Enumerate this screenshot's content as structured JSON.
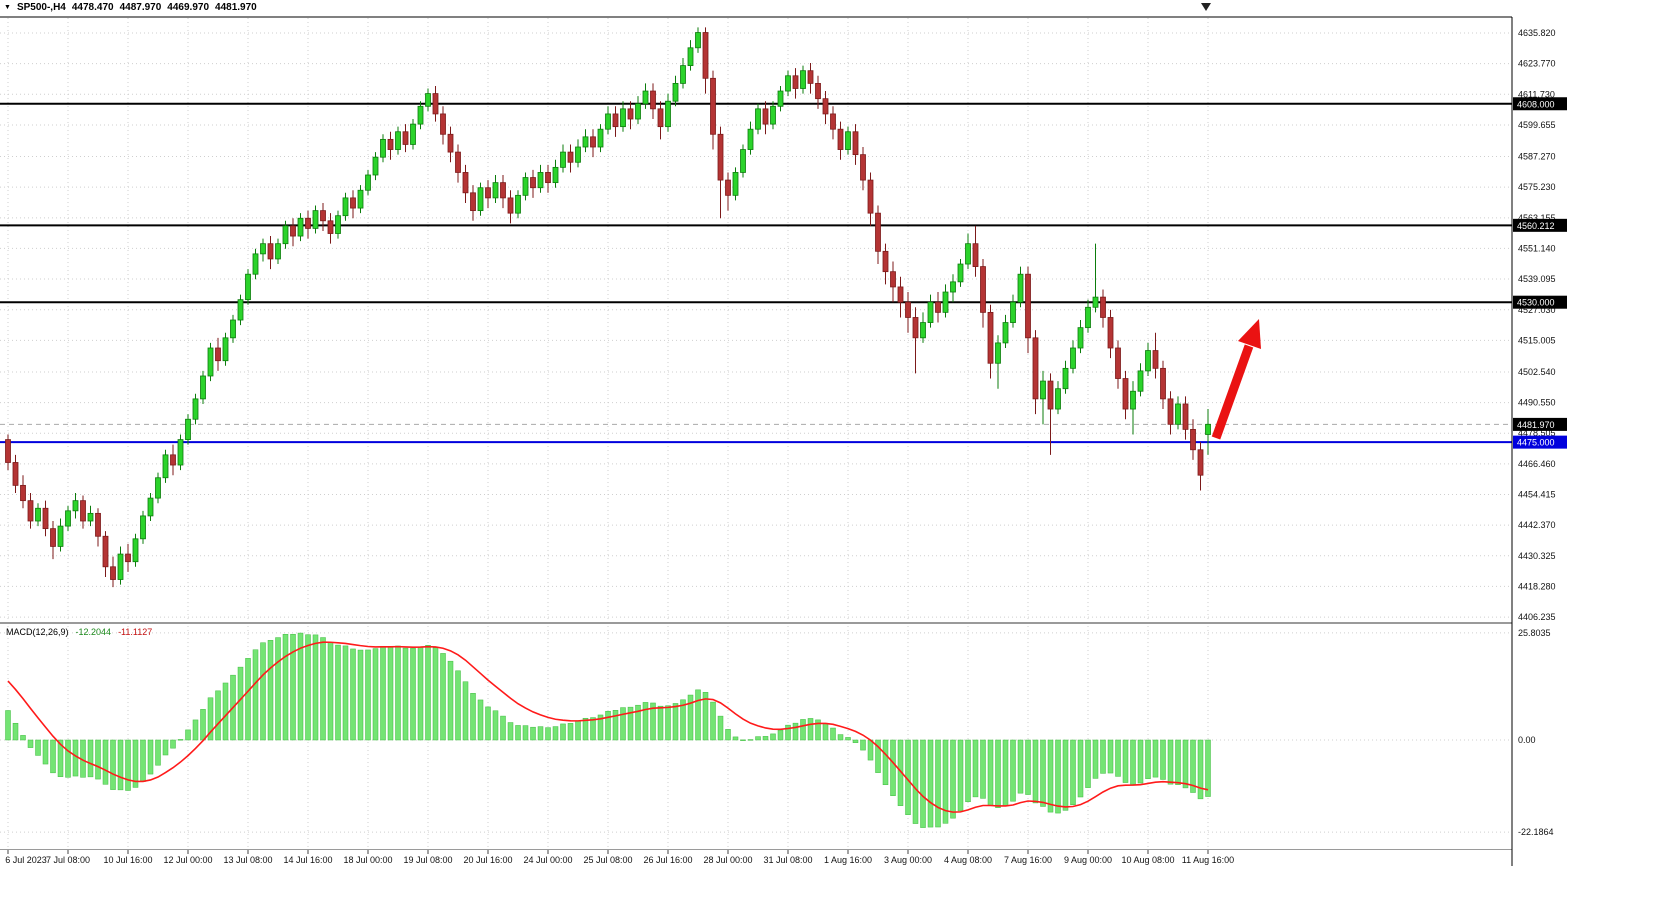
{
  "header": {
    "dropdown_icon": "▼",
    "symbol_timeframe": "SP500-,H4",
    "open": "4478.470",
    "high": "4487.970",
    "low": "4469.970",
    "close": "4481.970"
  },
  "colors": {
    "bull": "#2bd32b",
    "bull_stroke": "#0c7c0c",
    "bear": "#b43434",
    "bear_stroke": "#7c1a1a",
    "histogram": "#74e474",
    "histogram_stroke": "#3fbc3f",
    "signal": "#ff1a1a",
    "grid": "#cfcfcf",
    "level_black": "#000000",
    "level_blue": "#0000dd",
    "arrow": "#ea1212"
  },
  "price_scale": {
    "ticks": [
      "4635.820",
      "4623.770",
      "4611.730",
      "4599.655",
      "4587.270",
      "4575.230",
      "4563.155",
      "4551.140",
      "4539.095",
      "4527.030",
      "4515.005",
      "4502.540",
      "4490.550",
      "4478.505",
      "4466.460",
      "4454.415",
      "4442.370",
      "4430.325",
      "4418.280",
      "4406.235"
    ]
  },
  "levels": [
    {
      "price": 4608.0,
      "label": "4608.000",
      "color": "#000000",
      "style": "solid",
      "width": 2,
      "tag_color": "#000000"
    },
    {
      "price": 4560.212,
      "label": "4560.212",
      "color": "#000000",
      "style": "solid",
      "width": 2,
      "tag_color": "#000000"
    },
    {
      "price": 4530.0,
      "label": "4530.000",
      "color": "#000000",
      "style": "solid",
      "width": 2,
      "tag_color": "#000000"
    },
    {
      "price": 4481.97,
      "label": "4481.970",
      "color": "#aaaaaa",
      "style": "dashed",
      "width": 1,
      "tag_color": "#000000"
    },
    {
      "price": 4475.0,
      "label": "4475.000",
      "color": "#0000dd",
      "style": "solid",
      "width": 2,
      "tag_color": "#0000dd"
    }
  ],
  "time_axis": {
    "labels": [
      {
        "text": "6 Jul 2023",
        "bar": 0
      },
      {
        "text": "7 Jul 08:00",
        "bar": 8
      },
      {
        "text": "10 Jul 16:00",
        "bar": 16
      },
      {
        "text": "12 Jul 00:00",
        "bar": 24
      },
      {
        "text": "13 Jul 08:00",
        "bar": 32
      },
      {
        "text": "14 Jul 16:00",
        "bar": 40
      },
      {
        "text": "18 Jul 00:00",
        "bar": 48
      },
      {
        "text": "19 Jul 08:00",
        "bar": 56
      },
      {
        "text": "20 Jul 16:00",
        "bar": 64
      },
      {
        "text": "24 Jul 00:00",
        "bar": 72
      },
      {
        "text": "25 Jul 08:00",
        "bar": 80
      },
      {
        "text": "26 Jul 16:00",
        "bar": 88
      },
      {
        "text": "28 Jul 00:00",
        "bar": 96
      },
      {
        "text": "31 Jul 08:00",
        "bar": 104
      },
      {
        "text": "1 Aug 16:00",
        "bar": 112
      },
      {
        "text": "3 Aug 00:00",
        "bar": 120
      },
      {
        "text": "4 Aug 08:00",
        "bar": 128
      },
      {
        "text": "7 Aug 16:00",
        "bar": 136
      },
      {
        "text": "9 Aug 00:00",
        "bar": 144
      },
      {
        "text": "10 Aug 08:00",
        "bar": 152
      },
      {
        "text": "11 Aug 16:00",
        "bar": 160
      }
    ]
  },
  "chart_data": {
    "type": "candlestick",
    "symbol": "SP500-",
    "timeframe": "H4",
    "current_bar": {
      "open": "4478.470",
      "high": "4487.970",
      "low": "4469.970",
      "close": "4481.970"
    },
    "y_range": [
      4406.235,
      4635.82
    ],
    "ohlc": [
      [
        4476,
        4478,
        4464,
        4467
      ],
      [
        4467,
        4470,
        4455,
        4458
      ],
      [
        4458,
        4462,
        4449,
        4452
      ],
      [
        4452,
        4455,
        4441,
        4444
      ],
      [
        4444,
        4451,
        4442,
        4449
      ],
      [
        4449,
        4452,
        4438,
        4441
      ],
      [
        4441,
        4444,
        4429,
        4434
      ],
      [
        4434,
        4445,
        4432,
        4442
      ],
      [
        4442,
        4450,
        4440,
        4448
      ],
      [
        4448,
        4455,
        4445,
        4452
      ],
      [
        4452,
        4454,
        4441,
        4444
      ],
      [
        4444,
        4450,
        4442,
        4447
      ],
      [
        4447,
        4449,
        4434,
        4438
      ],
      [
        4438,
        4440,
        4422,
        4426
      ],
      [
        4426,
        4430,
        4418,
        4421
      ],
      [
        4421,
        4434,
        4419,
        4431
      ],
      [
        4431,
        4435,
        4424,
        4428
      ],
      [
        4428,
        4439,
        4426,
        4437
      ],
      [
        4437,
        4448,
        4435,
        4446
      ],
      [
        4446,
        4455,
        4444,
        4453
      ],
      [
        4453,
        4463,
        4451,
        4461
      ],
      [
        4461,
        4472,
        4459,
        4470
      ],
      [
        4470,
        4474,
        4462,
        4466
      ],
      [
        4466,
        4478,
        4464,
        4476
      ],
      [
        4476,
        4486,
        4474,
        4484
      ],
      [
        4484,
        4494,
        4482,
        4492
      ],
      [
        4492,
        4503,
        4490,
        4501
      ],
      [
        4501,
        4514,
        4499,
        4512
      ],
      [
        4512,
        4516,
        4503,
        4507
      ],
      [
        4507,
        4518,
        4505,
        4516
      ],
      [
        4516,
        4525,
        4514,
        4523
      ],
      [
        4523,
        4533,
        4521,
        4531
      ],
      [
        4531,
        4543,
        4529,
        4541
      ],
      [
        4541,
        4551,
        4539,
        4549
      ],
      [
        4549,
        4555,
        4546,
        4553
      ],
      [
        4553,
        4556,
        4543,
        4547
      ],
      [
        4547,
        4555,
        4545,
        4553
      ],
      [
        4553,
        4562,
        4551,
        4560
      ],
      [
        4560,
        4563,
        4552,
        4556
      ],
      [
        4556,
        4565,
        4554,
        4563
      ],
      [
        4563,
        4566,
        4555,
        4559
      ],
      [
        4559,
        4568,
        4557,
        4566
      ],
      [
        4566,
        4569,
        4558,
        4562
      ],
      [
        4562,
        4565,
        4553,
        4557
      ],
      [
        4557,
        4566,
        4555,
        4564
      ],
      [
        4564,
        4573,
        4562,
        4571
      ],
      [
        4571,
        4574,
        4563,
        4567
      ],
      [
        4567,
        4576,
        4565,
        4574
      ],
      [
        4574,
        4582,
        4572,
        4580
      ],
      [
        4580,
        4589,
        4578,
        4587
      ],
      [
        4587,
        4596,
        4585,
        4594
      ],
      [
        4594,
        4597,
        4586,
        4590
      ],
      [
        4590,
        4599,
        4588,
        4597
      ],
      [
        4597,
        4600,
        4589,
        4592
      ],
      [
        4592,
        4602,
        4590,
        4600
      ],
      [
        4600,
        4609,
        4598,
        4607
      ],
      [
        4607,
        4614,
        4605,
        4612
      ],
      [
        4612,
        4615,
        4601,
        4604
      ],
      [
        4604,
        4607,
        4592,
        4596
      ],
      [
        4596,
        4599,
        4585,
        4589
      ],
      [
        4589,
        4592,
        4577,
        4581
      ],
      [
        4581,
        4584,
        4569,
        4573
      ],
      [
        4573,
        4576,
        4562,
        4566
      ],
      [
        4566,
        4577,
        4564,
        4575
      ],
      [
        4575,
        4578,
        4567,
        4571
      ],
      [
        4571,
        4580,
        4569,
        4577
      ],
      [
        4577,
        4580,
        4567,
        4571
      ],
      [
        4571,
        4574,
        4561,
        4565
      ],
      [
        4565,
        4574,
        4563,
        4572
      ],
      [
        4572,
        4581,
        4570,
        4579
      ],
      [
        4579,
        4582,
        4571,
        4575
      ],
      [
        4575,
        4584,
        4573,
        4581
      ],
      [
        4581,
        4584,
        4573,
        4577
      ],
      [
        4577,
        4586,
        4575,
        4583
      ],
      [
        4583,
        4592,
        4581,
        4589
      ],
      [
        4589,
        4592,
        4581,
        4585
      ],
      [
        4585,
        4594,
        4583,
        4591
      ],
      [
        4591,
        4598,
        4589,
        4595
      ],
      [
        4595,
        4598,
        4587,
        4591
      ],
      [
        4591,
        4600,
        4589,
        4598
      ],
      [
        4598,
        4607,
        4596,
        4604
      ],
      [
        4604,
        4607,
        4595,
        4599
      ],
      [
        4599,
        4609,
        4597,
        4606
      ],
      [
        4606,
        4609,
        4598,
        4602
      ],
      [
        4602,
        4611,
        4600,
        4608
      ],
      [
        4608,
        4616,
        4606,
        4613
      ],
      [
        4613,
        4616,
        4602,
        4606
      ],
      [
        4606,
        4609,
        4594,
        4599
      ],
      [
        4599,
        4612,
        4597,
        4609
      ],
      [
        4609,
        4619,
        4607,
        4616
      ],
      [
        4616,
        4626,
        4614,
        4623
      ],
      [
        4623,
        4633,
        4621,
        4630
      ],
      [
        4630,
        4638,
        4628,
        4636
      ],
      [
        4636,
        4638,
        4612,
        4618
      ],
      [
        4618,
        4621,
        4590,
        4596
      ],
      [
        4596,
        4599,
        4563,
        4578
      ],
      [
        4578,
        4581,
        4566,
        4572
      ],
      [
        4572,
        4583,
        4570,
        4581
      ],
      [
        4581,
        4592,
        4579,
        4590
      ],
      [
        4590,
        4601,
        4588,
        4598
      ],
      [
        4598,
        4608,
        4596,
        4606
      ],
      [
        4606,
        4609,
        4596,
        4600
      ],
      [
        4600,
        4609,
        4598,
        4607
      ],
      [
        4607,
        4615,
        4605,
        4613
      ],
      [
        4613,
        4621,
        4611,
        4619
      ],
      [
        4619,
        4622,
        4610,
        4614
      ],
      [
        4614,
        4623,
        4612,
        4621
      ],
      [
        4621,
        4624,
        4612,
        4616
      ],
      [
        4616,
        4619,
        4606,
        4610
      ],
      [
        4610,
        4613,
        4600,
        4604
      ],
      [
        4604,
        4607,
        4594,
        4598
      ],
      [
        4598,
        4601,
        4586,
        4590
      ],
      [
        4590,
        4599,
        4588,
        4597
      ],
      [
        4597,
        4600,
        4584,
        4588
      ],
      [
        4588,
        4591,
        4574,
        4578
      ],
      [
        4578,
        4581,
        4560,
        4565
      ],
      [
        4565,
        4568,
        4545,
        4550
      ],
      [
        4550,
        4553,
        4537,
        4542
      ],
      [
        4542,
        4546,
        4530,
        4536
      ],
      [
        4536,
        4540,
        4524,
        4530
      ],
      [
        4530,
        4534,
        4518,
        4524
      ],
      [
        4524,
        4528,
        4502,
        4516
      ],
      [
        4516,
        4526,
        4514,
        4522
      ],
      [
        4522,
        4533,
        4520,
        4530
      ],
      [
        4530,
        4534,
        4522,
        4526
      ],
      [
        4526,
        4537,
        4524,
        4534
      ],
      [
        4534,
        4541,
        4530,
        4538
      ],
      [
        4538,
        4547,
        4536,
        4545
      ],
      [
        4545,
        4557,
        4543,
        4553
      ],
      [
        4553,
        4560,
        4540,
        4544
      ],
      [
        4544,
        4547,
        4520,
        4526
      ],
      [
        4526,
        4529,
        4500,
        4506
      ],
      [
        4506,
        4517,
        4496,
        4514
      ],
      [
        4514,
        4525,
        4512,
        4522
      ],
      [
        4522,
        4533,
        4520,
        4530
      ],
      [
        4530,
        4544,
        4528,
        4541
      ],
      [
        4541,
        4544,
        4510,
        4516
      ],
      [
        4516,
        4519,
        4486,
        4492
      ],
      [
        4492,
        4503,
        4482,
        4499
      ],
      [
        4499,
        4502,
        4470,
        4488
      ],
      [
        4488,
        4499,
        4486,
        4496
      ],
      [
        4496,
        4507,
        4494,
        4504
      ],
      [
        4504,
        4515,
        4502,
        4512
      ],
      [
        4512,
        4523,
        4510,
        4520
      ],
      [
        4520,
        4531,
        4518,
        4528
      ],
      [
        4528,
        4553,
        4526,
        4532
      ],
      [
        4532,
        4535,
        4520,
        4524
      ],
      [
        4524,
        4527,
        4508,
        4512
      ],
      [
        4512,
        4515,
        4496,
        4500
      ],
      [
        4500,
        4503,
        4484,
        4488
      ],
      [
        4488,
        4499,
        4478,
        4495
      ],
      [
        4495,
        4506,
        4493,
        4503
      ],
      [
        4503,
        4514,
        4501,
        4511
      ],
      [
        4511,
        4518,
        4500,
        4504
      ],
      [
        4504,
        4507,
        4488,
        4492
      ],
      [
        4492,
        4495,
        4478,
        4482
      ],
      [
        4482,
        4493,
        4480,
        4490
      ],
      [
        4490,
        4493,
        4476,
        4480
      ],
      [
        4480,
        4484,
        4468,
        4472
      ],
      [
        4472,
        4475,
        4456,
        4462
      ],
      [
        4478,
        4488,
        4470,
        4482
      ]
    ],
    "macd": {
      "label": "MACD(12,26,9)",
      "fast": 12,
      "slow": 26,
      "signal_period": 9,
      "value_main": "-12.2044",
      "value_signal": "-11.1127",
      "scale_top": "25.8035",
      "scale_zero": "0.00",
      "scale_bottom": "-22.1864"
    }
  },
  "annotation": {
    "arrow": {
      "color": "#ea1212",
      "direction": "up"
    }
  }
}
